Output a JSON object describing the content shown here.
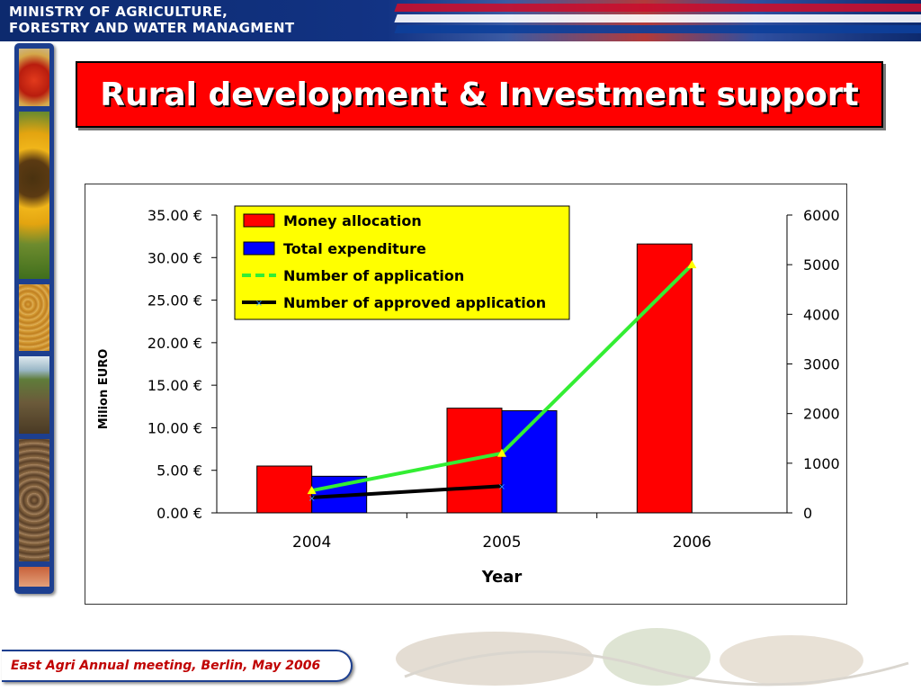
{
  "header": {
    "line1": "MINISTRY OF AGRICULTURE,",
    "line2": "FORESTRY AND WATER MANAGMENT"
  },
  "title": "Rural development & Investment support",
  "footer": "East Agri Annual meeting, Berlin, May 2006",
  "colors": {
    "title_bg": "#ff0000",
    "money_allocation": "#ff0000",
    "total_expenditure": "#0000ff",
    "number_of_application": "#33ee33",
    "number_of_approved_application": "#000000",
    "legend_bg": "#ffff00",
    "header_navy": "#123384"
  },
  "chart_data": {
    "type": "bar",
    "categories": [
      "2004",
      "2005",
      "2006"
    ],
    "xlabel": "Year",
    "ylabel": "Milion EURO",
    "y_left": {
      "ylim": [
        0,
        35
      ],
      "ticks": [
        "0.00 €",
        "5.00 €",
        "10.00 €",
        "15.00 €",
        "20.00 €",
        "25.00 €",
        "30.00 €",
        "35.00 €"
      ]
    },
    "y_right": {
      "ylim": [
        0,
        6000
      ],
      "ticks": [
        "0",
        "1000",
        "2000",
        "3000",
        "4000",
        "5000",
        "6000"
      ]
    },
    "series": [
      {
        "name": "Money allocation",
        "kind": "bar",
        "axis": "left",
        "values": [
          5.5,
          12.3,
          31.6
        ]
      },
      {
        "name": "Total expenditure",
        "kind": "bar",
        "axis": "left",
        "values": [
          4.3,
          12.0,
          null
        ]
      },
      {
        "name": "Number of application",
        "kind": "line",
        "axis": "right",
        "values": [
          450,
          1200,
          5000
        ]
      },
      {
        "name": "Number of approved application",
        "kind": "line",
        "axis": "right",
        "values": [
          310,
          540,
          null
        ]
      }
    ],
    "legend_position": "top-left",
    "grid": false
  }
}
